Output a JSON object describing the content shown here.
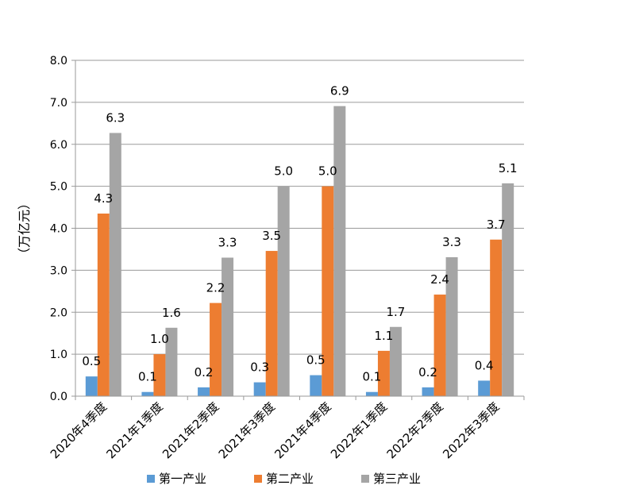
{
  "chart_data": {
    "type": "bar",
    "title": "",
    "xlabel": "",
    "ylabel": "（万亿元）",
    "ylim": [
      0,
      8
    ],
    "yticks": [
      0,
      1,
      2,
      3,
      4,
      5,
      6,
      7,
      8
    ],
    "ytick_labels": [
      "0.0",
      "1.0",
      "2.0",
      "3.0",
      "4.0",
      "5.0",
      "6.0",
      "7.0",
      "8.0"
    ],
    "grid": true,
    "legend_position": "bottom",
    "categories": [
      "2020年4季度",
      "2021年1季度",
      "2021年2季度",
      "2021年3季度",
      "2021年4季度",
      "2022年1季度",
      "2022年2季度",
      "2022年3季度"
    ],
    "series": [
      {
        "name": "第一产业",
        "color": "#5B9BD5",
        "values": [
          0.47,
          0.1,
          0.21,
          0.33,
          0.5,
          0.1,
          0.21,
          0.37
        ],
        "labels": [
          "0.5",
          "0.1",
          "0.2",
          "0.3",
          "0.5",
          "0.1",
          "0.2",
          "0.4"
        ]
      },
      {
        "name": "第二产业",
        "color": "#ED7D31",
        "values": [
          4.35,
          1.0,
          2.22,
          3.46,
          5.0,
          1.08,
          2.42,
          3.73
        ],
        "labels": [
          "4.3",
          "1.0",
          "2.2",
          "3.5",
          "5.0",
          "1.1",
          "2.4",
          "3.7"
        ]
      },
      {
        "name": "第三产业",
        "color": "#A5A5A5",
        "values": [
          6.27,
          1.63,
          3.3,
          5.0,
          6.91,
          1.65,
          3.31,
          5.07
        ],
        "labels": [
          "6.3",
          "1.6",
          "3.3",
          "5.0",
          "6.9",
          "1.7",
          "3.3",
          "5.1"
        ]
      }
    ]
  }
}
